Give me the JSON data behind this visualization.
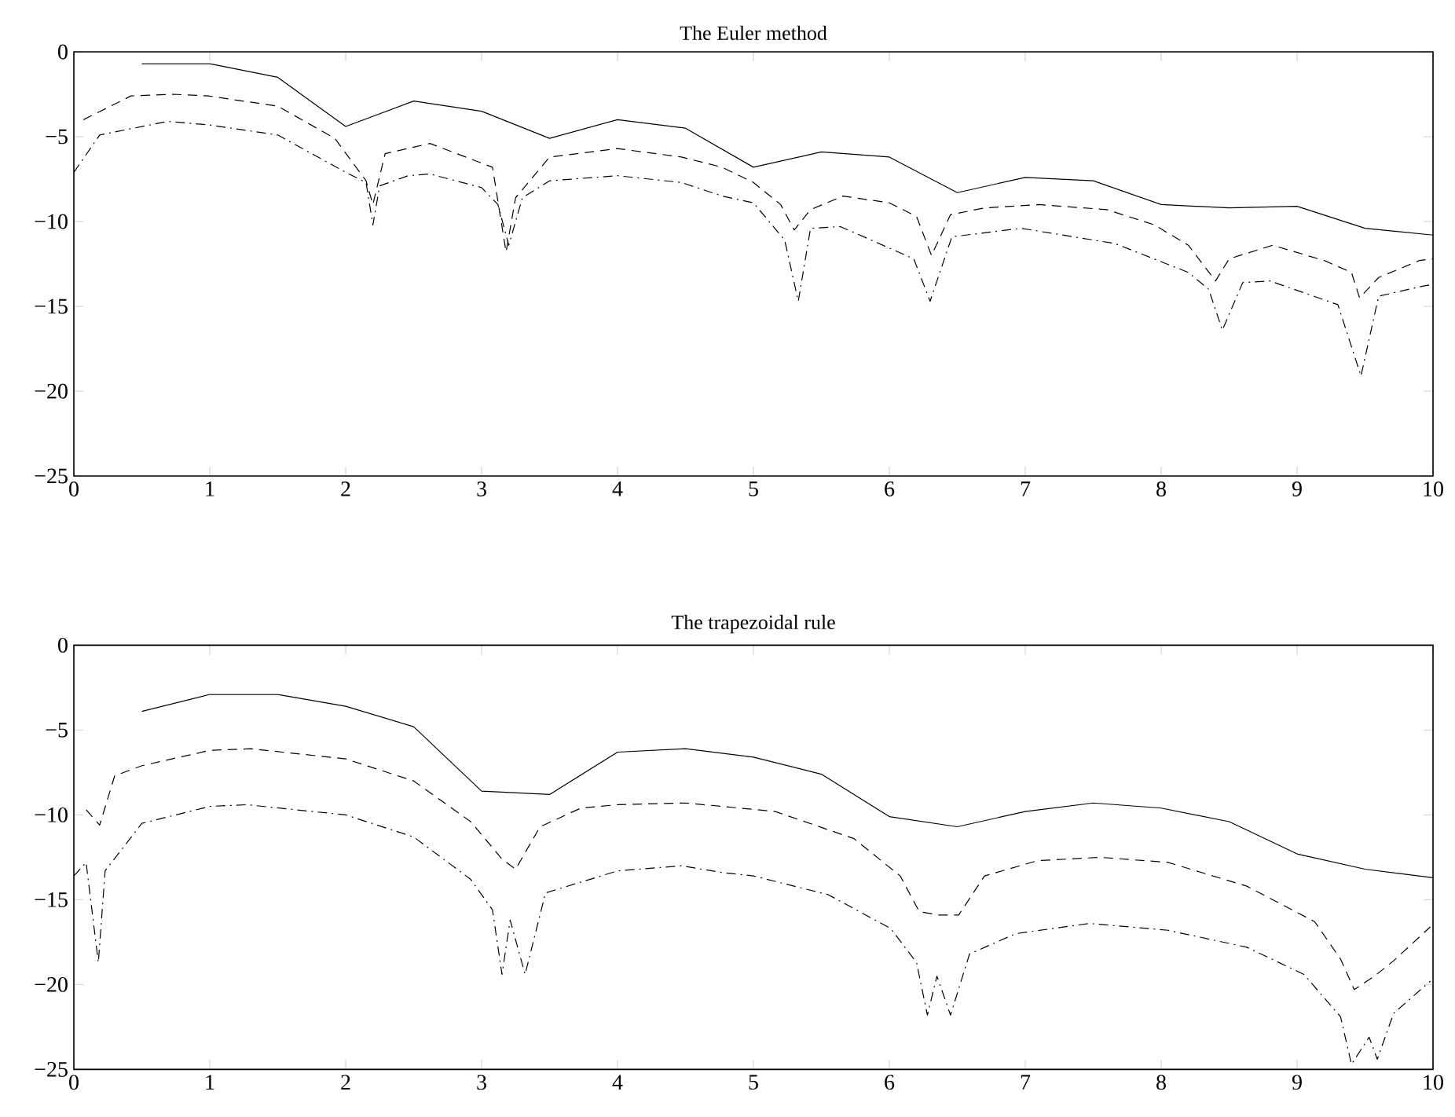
{
  "chart_data": [
    {
      "type": "line",
      "title": "The Euler method",
      "xlim": [
        0,
        10
      ],
      "ylim": [
        -25,
        0
      ],
      "xticks": [
        0,
        1,
        2,
        3,
        4,
        5,
        6,
        7,
        8,
        9,
        10
      ],
      "yticks": [
        {
          "value": -25,
          "label": "−25"
        },
        {
          "value": -20,
          "label": "−20"
        },
        {
          "value": -15,
          "label": "−15"
        },
        {
          "value": -10,
          "label": "−10"
        },
        {
          "value": -5,
          "label": "−5"
        },
        0
      ],
      "grid": false,
      "marker": "none",
      "series": [
        {
          "color": "#000000",
          "line_style": "solid",
          "x": [
            0.5,
            1,
            1.5,
            2,
            2.5,
            3,
            3.5,
            4,
            4.5,
            5,
            5.5,
            6,
            6.5,
            7,
            7.5,
            8,
            8.5,
            9,
            9.5,
            10
          ],
          "values": [
            -0.7,
            -0.7,
            -1.5,
            -4.4,
            -2.9,
            -3.5,
            -5.1,
            -4.0,
            -4.5,
            -6.8,
            -5.9,
            -6.2,
            -8.3,
            -7.4,
            -7.6,
            -9.0,
            -9.2,
            -9.1,
            -10.4,
            -10.8
          ]
        },
        {
          "color": "#000000",
          "line_style": "dashed",
          "x": [
            0.07,
            0.42,
            0.73,
            0.99,
            1.5,
            1.92,
            2.15,
            2.2,
            2.29,
            2.62,
            3.08,
            3.18,
            3.25,
            3.5,
            4.0,
            4.47,
            4.77,
            5.0,
            5.2,
            5.3,
            5.42,
            5.66,
            6.0,
            6.2,
            6.31,
            6.45,
            6.7,
            7.1,
            7.6,
            7.95,
            8.2,
            8.4,
            8.5,
            8.82,
            9.2,
            9.4,
            9.46,
            9.6,
            9.9,
            10
          ],
          "values": [
            -4.0,
            -2.6,
            -2.5,
            -2.6,
            -3.2,
            -5.1,
            -7.6,
            -9.0,
            -6.0,
            -5.4,
            -6.8,
            -11.8,
            -8.6,
            -6.2,
            -5.7,
            -6.2,
            -6.8,
            -7.7,
            -9.0,
            -10.5,
            -9.3,
            -8.5,
            -8.9,
            -9.7,
            -12.0,
            -9.6,
            -9.2,
            -9.0,
            -9.3,
            -10.2,
            -11.4,
            -13.5,
            -12.2,
            -11.4,
            -12.3,
            -13.0,
            -14.5,
            -13.3,
            -12.3,
            -12.2
          ]
        },
        {
          "color": "#000000",
          "line_style": "dashdot",
          "x": [
            0,
            0.19,
            0.69,
            0.99,
            1.5,
            2.0,
            2.15,
            2.2,
            2.25,
            2.46,
            2.62,
            3.0,
            3.12,
            3.2,
            3.3,
            3.5,
            4.0,
            4.47,
            4.77,
            5.0,
            5.23,
            5.33,
            5.42,
            5.64,
            6.18,
            6.3,
            6.46,
            6.97,
            7.66,
            8.2,
            8.35,
            8.45,
            8.6,
            8.8,
            9.3,
            9.47,
            9.6,
            9.93,
            10
          ],
          "values": [
            -7.1,
            -4.9,
            -4.1,
            -4.3,
            -4.9,
            -7.1,
            -7.7,
            -10.2,
            -7.9,
            -7.3,
            -7.2,
            -8.0,
            -9.0,
            -11.4,
            -8.6,
            -7.6,
            -7.3,
            -7.7,
            -8.5,
            -8.9,
            -11.1,
            -14.7,
            -10.4,
            -10.3,
            -12.2,
            -14.7,
            -10.9,
            -10.4,
            -11.3,
            -13.0,
            -14.0,
            -16.4,
            -13.6,
            -13.5,
            -14.9,
            -19.1,
            -14.4,
            -13.8,
            -13.7
          ]
        }
      ]
    },
    {
      "type": "line",
      "title": "The trapezoidal rule",
      "xlim": [
        0,
        10
      ],
      "ylim": [
        -25,
        0
      ],
      "xticks": [
        0,
        1,
        2,
        3,
        4,
        5,
        6,
        7,
        8,
        9,
        10
      ],
      "yticks": [
        {
          "value": -25,
          "label": "−25"
        },
        {
          "value": -20,
          "label": "−20"
        },
        {
          "value": -15,
          "label": "−15"
        },
        {
          "value": -10,
          "label": "−10"
        },
        {
          "value": -5,
          "label": "−5"
        },
        0
      ],
      "grid": false,
      "marker": "none",
      "series": [
        {
          "color": "#000000",
          "line_style": "solid",
          "x": [
            0.5,
            1,
            1.5,
            2,
            2.5,
            3,
            3.5,
            4,
            4.5,
            5,
            5.5,
            6,
            6.5,
            7,
            7.5,
            8,
            8.5,
            9,
            9.5,
            10
          ],
          "values": [
            -3.9,
            -2.9,
            -2.9,
            -3.6,
            -4.8,
            -8.6,
            -8.8,
            -6.3,
            -6.1,
            -6.6,
            -7.6,
            -10.1,
            -10.7,
            -9.8,
            -9.3,
            -9.6,
            -10.4,
            -12.3,
            -13.2,
            -13.7
          ]
        },
        {
          "color": "#000000",
          "line_style": "dashed",
          "x": [
            0.09,
            0.19,
            0.3,
            0.5,
            1.0,
            1.3,
            2.0,
            2.5,
            2.92,
            3.15,
            3.25,
            3.43,
            3.73,
            4.0,
            4.5,
            4.77,
            5.16,
            5.74,
            6.08,
            6.22,
            6.36,
            6.51,
            6.7,
            7.09,
            7.55,
            8.05,
            8.63,
            9.13,
            9.32,
            9.42,
            9.57,
            9.71,
            9.98
          ],
          "values": [
            -9.7,
            -10.6,
            -7.7,
            -7.1,
            -6.2,
            -6.1,
            -6.7,
            -8.0,
            -10.4,
            -12.6,
            -13.2,
            -10.7,
            -9.6,
            -9.4,
            -9.3,
            -9.5,
            -9.8,
            -11.4,
            -13.6,
            -15.7,
            -15.9,
            -15.9,
            -13.6,
            -12.7,
            -12.5,
            -12.8,
            -14.2,
            -16.3,
            -18.5,
            -20.3,
            -19.5,
            -18.6,
            -16.6
          ]
        },
        {
          "color": "#000000",
          "line_style": "dashdot",
          "x": [
            0,
            0.09,
            0.18,
            0.23,
            0.5,
            1.0,
            1.27,
            2.0,
            2.5,
            2.92,
            3.08,
            3.15,
            3.21,
            3.32,
            3.47,
            4.0,
            4.47,
            4.77,
            5.0,
            5.55,
            6.01,
            6.2,
            6.28,
            6.35,
            6.45,
            6.59,
            6.93,
            7.47,
            8.05,
            8.63,
            9.05,
            9.32,
            9.4,
            9.53,
            9.59,
            9.71,
            9.98
          ],
          "values": [
            -13.6,
            -12.8,
            -18.7,
            -13.3,
            -10.5,
            -9.5,
            -9.4,
            -10.0,
            -11.3,
            -13.8,
            -15.6,
            -19.4,
            -16.2,
            -19.4,
            -14.6,
            -13.3,
            -13.0,
            -13.4,
            -13.6,
            -14.7,
            -16.7,
            -18.7,
            -21.8,
            -19.5,
            -21.8,
            -18.2,
            -17.0,
            -16.4,
            -16.8,
            -17.8,
            -19.4,
            -21.9,
            -24.7,
            -23.1,
            -24.4,
            -21.7,
            -19.8
          ]
        }
      ]
    }
  ]
}
